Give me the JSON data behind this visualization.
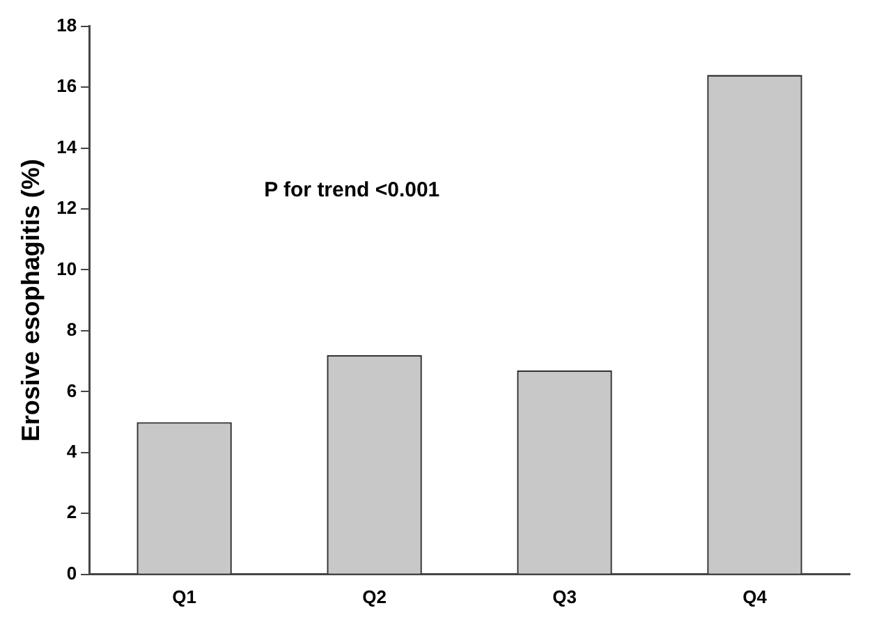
{
  "chart_data": {
    "type": "bar",
    "ylabel": "Erosive esophagitis (%)",
    "categories": [
      "Q1",
      "Q2",
      "Q3",
      "Q4"
    ],
    "values": [
      5.0,
      7.2,
      6.7,
      16.4
    ],
    "color": "#c8c8c8",
    "ylim": [
      0,
      18
    ],
    "yticks": [
      0,
      2,
      4,
      6,
      8,
      10,
      12,
      14,
      16,
      18
    ],
    "grid": false,
    "annotations": [
      "P for trend <0.001"
    ]
  }
}
